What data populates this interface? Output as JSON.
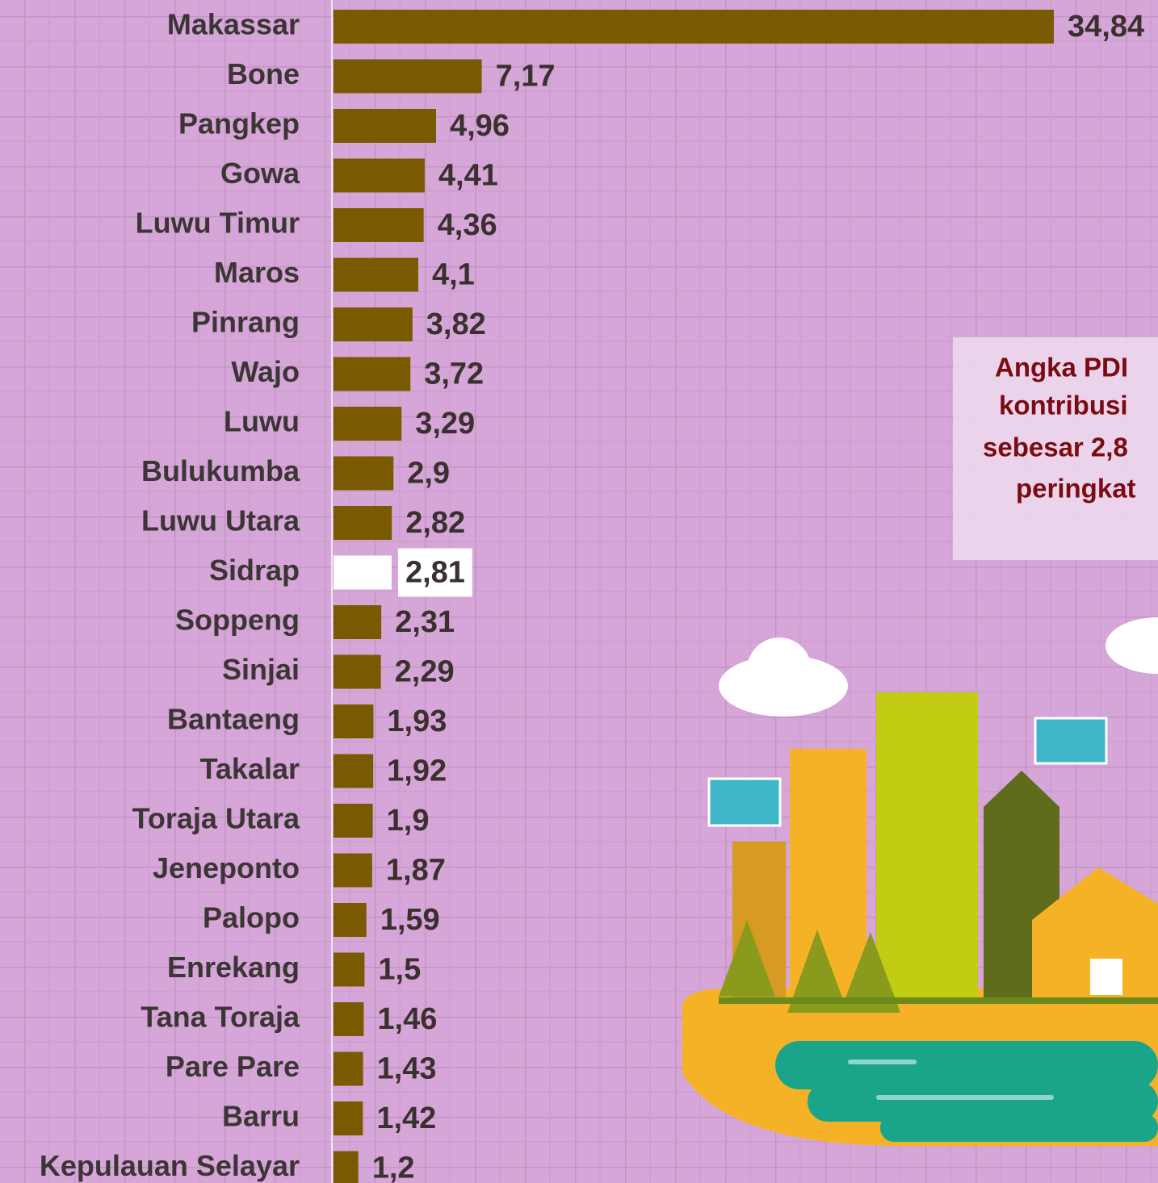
{
  "chart_data": {
    "type": "bar",
    "orientation": "horizontal",
    "categories": [
      "Makassar",
      "Bone",
      "Pangkep",
      "Gowa",
      "Luwu Timur",
      "Maros",
      "Pinrang",
      "Wajo",
      "Luwu",
      "Bulukumba",
      "Luwu Utara",
      "Sidrap",
      "Soppeng",
      "Sinjai",
      "Bantaeng",
      "Takalar",
      "Toraja Utara",
      "Jeneponto",
      "Palopo",
      "Enrekang",
      "Tana Toraja",
      "Pare Pare",
      "Barru",
      "Kepulauan Selayar"
    ],
    "values": [
      34.84,
      7.17,
      4.96,
      4.41,
      4.36,
      4.1,
      3.82,
      3.72,
      3.29,
      2.9,
      2.82,
      2.81,
      2.31,
      2.29,
      1.93,
      1.92,
      1.9,
      1.87,
      1.59,
      1.5,
      1.46,
      1.43,
      1.42,
      1.2
    ],
    "value_labels": [
      "34,84",
      "7,17",
      "4,96",
      "4,41",
      "4,36",
      "4,1",
      "3,82",
      "3,72",
      "3,29",
      "2,9",
      "2,82",
      "2,81",
      "2,31",
      "2,29",
      "1,93",
      "1,92",
      "1,9",
      "1,87",
      "1,59",
      "1,5",
      "1,46",
      "1,43",
      "1,42",
      "1,2"
    ],
    "colors": [
      "#7a5a00",
      "#7a5a00",
      "#7a5a00",
      "#7a5a00",
      "#7a5a00",
      "#7a5a00",
      "#7a5a00",
      "#7a5a00",
      "#7a5a00",
      "#7a5a00",
      "#7a5a00",
      "#ffffff",
      "#7a5a00",
      "#7a5a00",
      "#7a5a00",
      "#7a5a00",
      "#7a5a00",
      "#7a5a00",
      "#7a5a00",
      "#7a5a00",
      "#7a5a00",
      "#7a5a00",
      "#7a5a00",
      "#7a5a00"
    ],
    "annotation": [
      "Angka PDI",
      "kontribusi",
      "sebesar 2,8",
      "peringkat"
    ]
  }
}
